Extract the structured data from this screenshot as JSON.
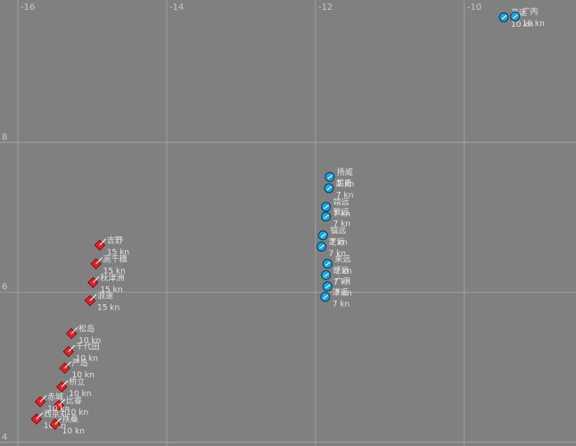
{
  "chart_data": {
    "type": "scatter",
    "xlim": [
      -16.24,
      -8.5
    ],
    "ylim": [
      3.95,
      9.9
    ],
    "xticks": [
      -16,
      -14,
      -12,
      -10
    ],
    "yticks": [
      4,
      6,
      8
    ],
    "grid": true,
    "series": [
      {
        "color": "#e0242a",
        "marker": "diamond",
        "x": [
          -14.9,
          -14.95,
          -14.99,
          -15.03,
          -15.28,
          -15.32,
          -15.37,
          -15.41,
          -15.45,
          -15.7,
          -15.75,
          -15.5
        ],
        "y": [
          6.63,
          6.38,
          6.13,
          5.89,
          5.45,
          5.21,
          4.99,
          4.74,
          4.49,
          4.54,
          4.31,
          4.24
        ],
        "labels": [
          "吉野",
          "高千穗",
          "秋津洲",
          "浪速",
          "松岛",
          "千代田",
          "严岛",
          "桥立",
          "比睿",
          "赤城",
          "西京丸",
          "扶桑"
        ],
        "speed_labels": [
          "15 kn",
          "15 kn",
          "15 kn",
          "15 kn",
          "10 kn",
          "10 kn",
          "10 kn",
          "10 kn",
          "10 kn",
          "10 kn",
          "10 kn",
          "10 kn"
        ]
      },
      {
        "color": "#1ba6e0",
        "marker": "circle",
        "x": [
          -11.81,
          -11.82,
          -11.86,
          -11.86,
          -11.9,
          -11.92,
          -11.84,
          -11.86,
          -11.84,
          -11.87,
          -9.47,
          -9.32
        ],
        "y": [
          7.54,
          7.39,
          7.14,
          7.01,
          6.76,
          6.61,
          6.38,
          6.23,
          6.08,
          5.94,
          9.67,
          9.68
        ],
        "labels": [
          "扬威",
          "超勇",
          "靖远",
          "致远",
          "镇远",
          "定远",
          "来远",
          "经远",
          "广甲",
          "济远",
          "平远",
          "广丙"
        ],
        "speed_labels": [
          "7 kn",
          "7 kn",
          "7 kn",
          "7 kn",
          "7 kn",
          "7 kn",
          "7 kn",
          "7 kn",
          "7 kn",
          "7 kn",
          "10 kn",
          "10 kn"
        ]
      }
    ]
  }
}
